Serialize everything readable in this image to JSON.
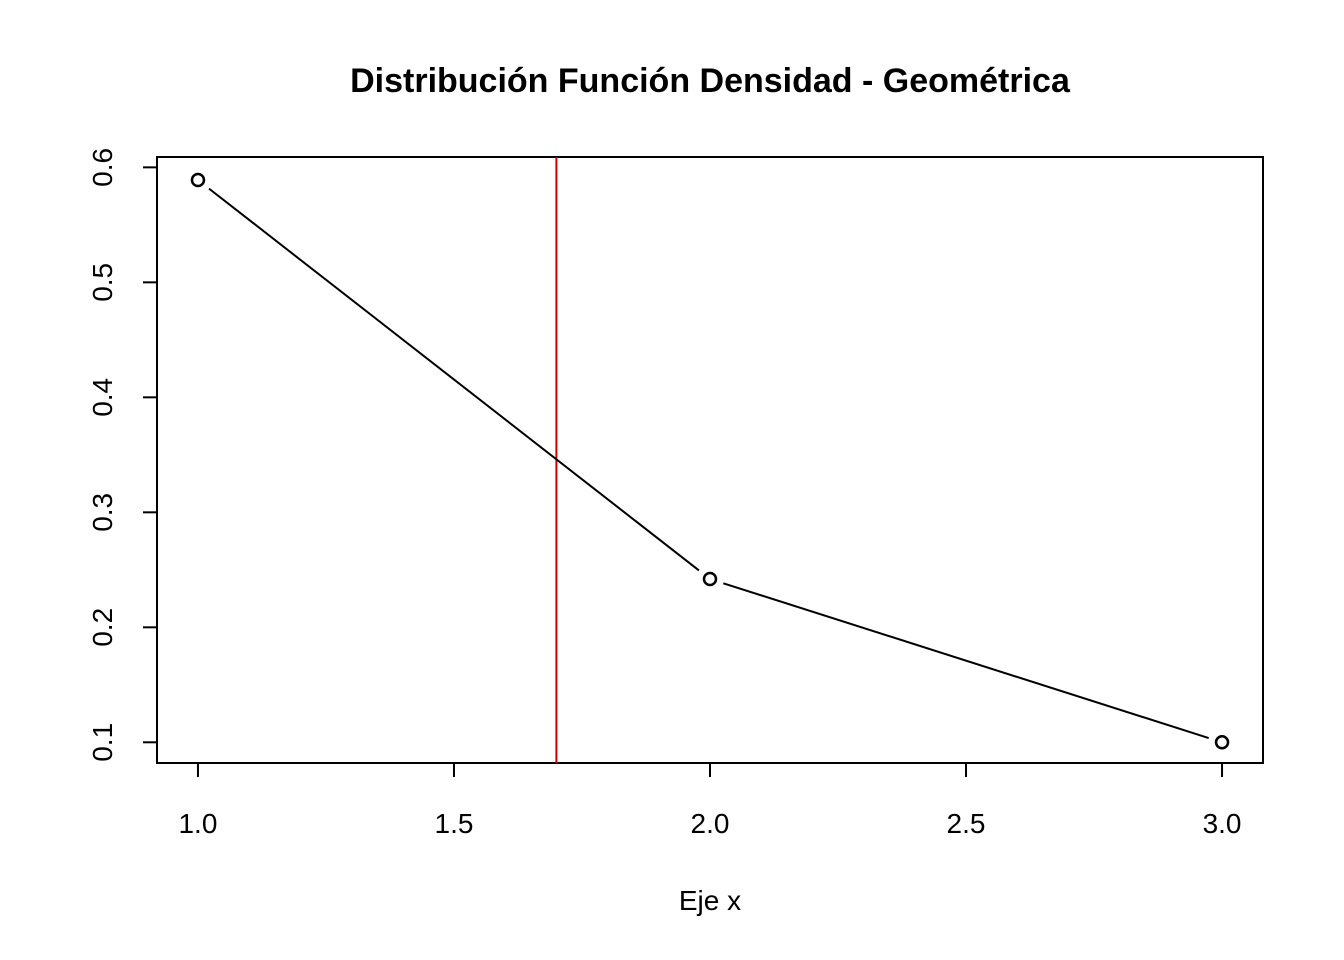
{
  "chart_data": {
    "type": "line",
    "title": "Distribución Función Densidad - Geométrica",
    "xlabel": "Eje x",
    "ylabel": "",
    "x": [
      1,
      2,
      3
    ],
    "series": [
      {
        "values": [
          0.589,
          0.242,
          0.1
        ],
        "color": "#000000",
        "marker": "open-circle",
        "line_style": "solid-with-gaps"
      }
    ],
    "vline": {
      "x": 1.7,
      "color": "#cc0000"
    },
    "xlim": [
      0.92,
      3.08
    ],
    "ylim": [
      0.082,
      0.609
    ],
    "xticks": [
      1.0,
      1.5,
      2.0,
      2.5,
      3.0
    ],
    "xtick_labels": [
      "1.0",
      "1.5",
      "2.0",
      "2.5",
      "3.0"
    ],
    "yticks": [
      0.1,
      0.2,
      0.3,
      0.4,
      0.5,
      0.6
    ],
    "ytick_labels": [
      "0.1",
      "0.2",
      "0.3",
      "0.4",
      "0.5",
      "0.6"
    ],
    "grid": false,
    "legend": "none"
  }
}
